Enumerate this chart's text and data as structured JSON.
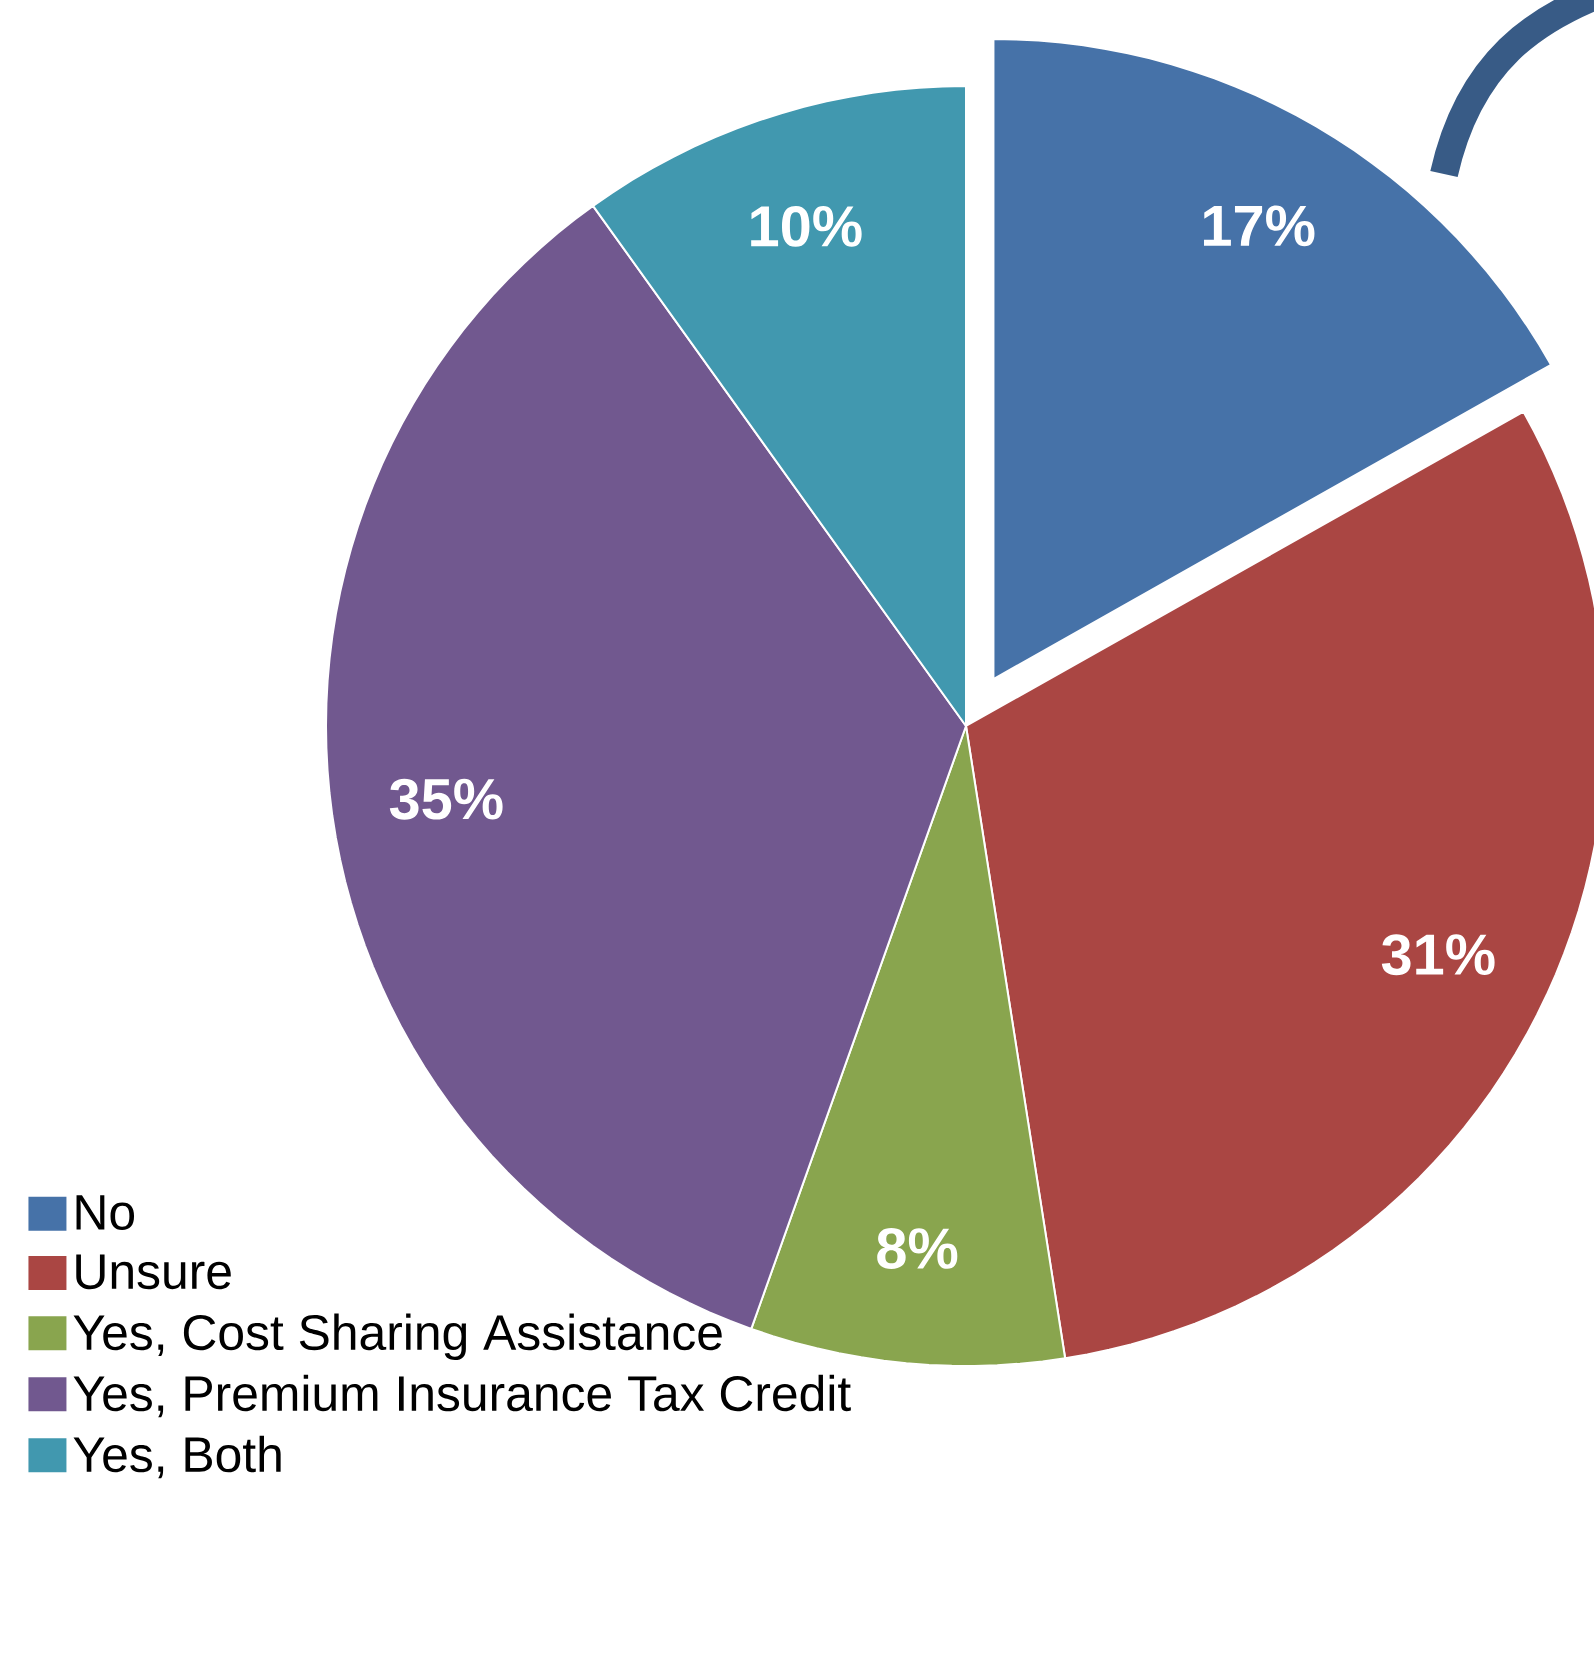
{
  "chart_data": {
    "type": "pie",
    "categories": [
      "No",
      "Unsure",
      "Yes, Cost Sharing Assistance",
      "Yes, Premium Insurance Tax Credit",
      "Yes, Both"
    ],
    "values": [
      17,
      31,
      8,
      35,
      10
    ],
    "colors": [
      "#4672a8",
      "#aa4643",
      "#89a54e",
      "#71588f",
      "#4198af"
    ],
    "value_labels": [
      "17%",
      "31%",
      "8%",
      "35%",
      "10%"
    ],
    "legend": "bottom left"
  }
}
